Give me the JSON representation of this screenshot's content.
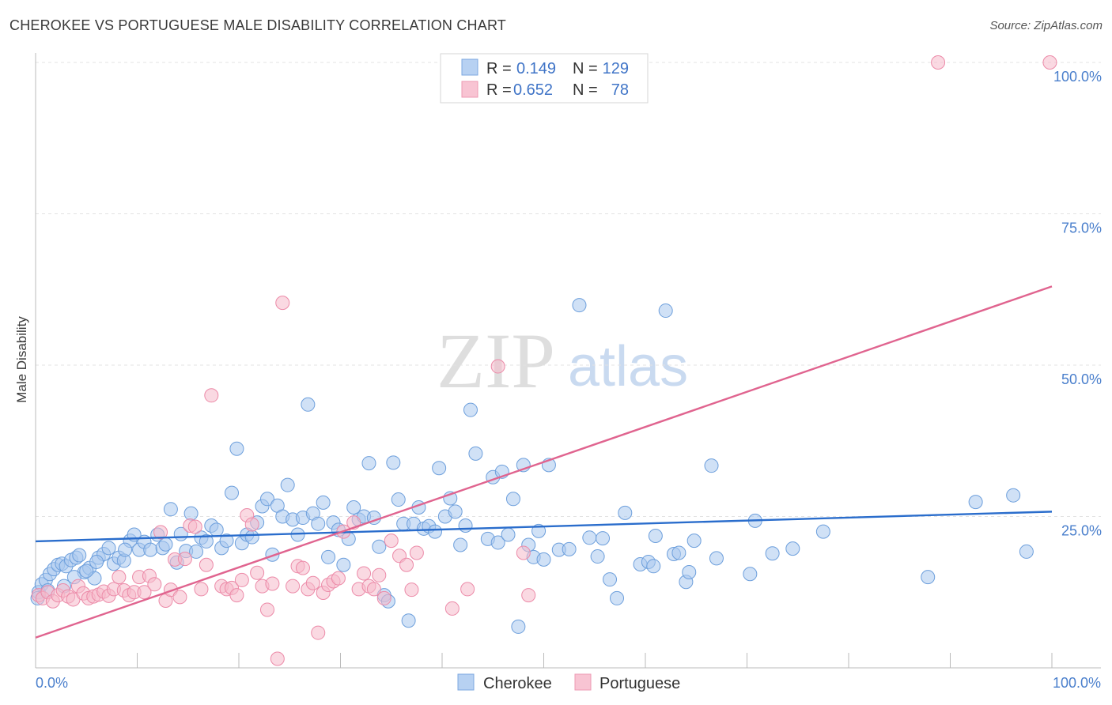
{
  "title": "CHEROKEE VS PORTUGUESE MALE DISABILITY CORRELATION CHART",
  "source": "Source: ZipAtlas.com",
  "watermark": {
    "zip": "ZIP",
    "atlas": "atlas"
  },
  "legend": {
    "rows": [
      {
        "r_label": "R =",
        "r_value": "0.149",
        "n_label": "N =",
        "n_value": "129"
      },
      {
        "r_label": "R =",
        "r_value": "0.652",
        "n_label": "N =",
        "n_value": "78"
      }
    ]
  },
  "colors": {
    "cherokee_fill": "#a9c8ef",
    "cherokee_stroke": "#6d9fdc",
    "cherokee_line": "#2a6dcc",
    "portuguese_fill": "#f6b9cb",
    "portuguese_stroke": "#ec8aa8",
    "portuguese_line": "#e0648f",
    "tick_text": "#4a7fcc"
  },
  "chart_data": {
    "type": "scatter",
    "title": "CHEROKEE VS PORTUGUESE MALE DISABILITY CORRELATION CHART",
    "xlabel": "",
    "ylabel": "Male Disability",
    "xlim": [
      0,
      100
    ],
    "ylim": [
      0,
      100
    ],
    "x_tick_labels": [
      "0.0%",
      "100.0%"
    ],
    "y_tick_labels": [
      "25.0%",
      "50.0%",
      "75.0%",
      "100.0%"
    ],
    "y_ticks": [
      25,
      50,
      75,
      100
    ],
    "grid": true,
    "legend_position": "top-center",
    "series": [
      {
        "name": "Cherokee",
        "color": "#a9c8ef",
        "r": 0.149,
        "n": 129,
        "trend": {
          "x": [
            0,
            100
          ],
          "y": [
            20.9,
            25.8
          ]
        },
        "points": [
          [
            0.3,
            12.5
          ],
          [
            0.6,
            13.8
          ],
          [
            1.0,
            14.5
          ],
          [
            1.4,
            15.5
          ],
          [
            1.8,
            16.3
          ],
          [
            2.2,
            17.0
          ],
          [
            2.6,
            17.2
          ],
          [
            3.0,
            16.8
          ],
          [
            3.5,
            17.8
          ],
          [
            4.0,
            18.2
          ],
          [
            4.3,
            18.6
          ],
          [
            4.8,
            15.8
          ],
          [
            5.3,
            16.5
          ],
          [
            5.8,
            14.8
          ],
          [
            6.2,
            18.2
          ],
          [
            6.7,
            18.8
          ],
          [
            7.2,
            19.8
          ],
          [
            7.7,
            17.2
          ],
          [
            8.2,
            18.2
          ],
          [
            8.7,
            17.7
          ],
          [
            9.3,
            21.0
          ],
          [
            9.7,
            22.0
          ],
          [
            10.2,
            19.5
          ],
          [
            10.7,
            20.8
          ],
          [
            11.3,
            19.5
          ],
          [
            12.0,
            22.0
          ],
          [
            12.5,
            19.8
          ],
          [
            12.8,
            20.4
          ],
          [
            13.3,
            26.2
          ],
          [
            13.9,
            17.4
          ],
          [
            14.3,
            22.1
          ],
          [
            14.8,
            19.3
          ],
          [
            15.3,
            25.5
          ],
          [
            15.8,
            19.2
          ],
          [
            16.3,
            21.5
          ],
          [
            16.8,
            20.9
          ],
          [
            17.3,
            23.5
          ],
          [
            17.8,
            22.8
          ],
          [
            18.3,
            19.8
          ],
          [
            18.8,
            21.0
          ],
          [
            19.3,
            28.9
          ],
          [
            19.8,
            36.2
          ],
          [
            20.3,
            20.6
          ],
          [
            20.8,
            22.0
          ],
          [
            21.3,
            21.6
          ],
          [
            21.8,
            24.0
          ],
          [
            22.3,
            26.7
          ],
          [
            22.8,
            27.9
          ],
          [
            23.3,
            18.7
          ],
          [
            23.8,
            26.8
          ],
          [
            24.3,
            25.0
          ],
          [
            24.8,
            30.2
          ],
          [
            25.3,
            24.5
          ],
          [
            25.8,
            22.0
          ],
          [
            26.3,
            24.8
          ],
          [
            26.8,
            43.5
          ],
          [
            27.3,
            25.5
          ],
          [
            27.8,
            23.8
          ],
          [
            28.3,
            27.3
          ],
          [
            28.8,
            18.3
          ],
          [
            29.3,
            24.0
          ],
          [
            29.8,
            22.8
          ],
          [
            30.3,
            17.0
          ],
          [
            30.8,
            21.3
          ],
          [
            31.3,
            26.5
          ],
          [
            31.8,
            24.5
          ],
          [
            32.3,
            25.0
          ],
          [
            32.8,
            33.8
          ],
          [
            33.3,
            24.8
          ],
          [
            33.8,
            20.0
          ],
          [
            34.3,
            12.0
          ],
          [
            34.7,
            11.0
          ],
          [
            35.2,
            33.9
          ],
          [
            35.7,
            27.8
          ],
          [
            36.2,
            23.8
          ],
          [
            36.7,
            7.8
          ],
          [
            37.2,
            23.8
          ],
          [
            37.7,
            26.5
          ],
          [
            38.2,
            23.0
          ],
          [
            38.7,
            23.4
          ],
          [
            39.3,
            22.5
          ],
          [
            39.7,
            33.0
          ],
          [
            40.3,
            25.0
          ],
          [
            40.8,
            28.0
          ],
          [
            41.3,
            25.8
          ],
          [
            41.8,
            20.3
          ],
          [
            42.3,
            23.5
          ],
          [
            42.8,
            42.6
          ],
          [
            43.3,
            35.4
          ],
          [
            44.5,
            21.3
          ],
          [
            45.0,
            31.5
          ],
          [
            45.5,
            20.7
          ],
          [
            45.9,
            32.4
          ],
          [
            46.5,
            22.0
          ],
          [
            47.0,
            27.9
          ],
          [
            47.5,
            6.8
          ],
          [
            48.0,
            33.5
          ],
          [
            48.5,
            20.3
          ],
          [
            49.0,
            18.3
          ],
          [
            49.5,
            22.6
          ],
          [
            50.0,
            17.9
          ],
          [
            50.5,
            33.5
          ],
          [
            51.5,
            19.5
          ],
          [
            52.5,
            19.6
          ],
          [
            53.5,
            59.9
          ],
          [
            54.5,
            21.5
          ],
          [
            55.3,
            18.4
          ],
          [
            55.8,
            21.4
          ],
          [
            56.5,
            14.6
          ],
          [
            57.2,
            11.5
          ],
          [
            58.0,
            25.6
          ],
          [
            59.5,
            17.1
          ],
          [
            60.3,
            17.5
          ],
          [
            60.8,
            16.8
          ],
          [
            61.0,
            21.8
          ],
          [
            62.0,
            59.0
          ],
          [
            62.8,
            18.8
          ],
          [
            63.3,
            19.0
          ],
          [
            64.0,
            14.2
          ],
          [
            64.3,
            15.8
          ],
          [
            64.8,
            21.0
          ],
          [
            66.5,
            33.4
          ],
          [
            67.0,
            18.1
          ],
          [
            70.3,
            15.5
          ],
          [
            70.8,
            24.3
          ],
          [
            72.5,
            18.9
          ],
          [
            74.5,
            19.7
          ],
          [
            77.5,
            22.5
          ],
          [
            87.8,
            15.0
          ],
          [
            92.5,
            27.4
          ],
          [
            96.2,
            28.5
          ],
          [
            97.5,
            19.2
          ],
          [
            0.2,
            11.5
          ],
          [
            1.2,
            12.8
          ],
          [
            2.8,
            13.5
          ],
          [
            3.8,
            15.0
          ],
          [
            5.0,
            16.0
          ],
          [
            6.0,
            17.5
          ],
          [
            8.8,
            19.5
          ]
        ]
      },
      {
        "name": "Portuguese",
        "color": "#f6b9cb",
        "r": 0.652,
        "n": 78,
        "trend": {
          "x": [
            0,
            100
          ],
          "y": [
            5.0,
            63.0
          ]
        },
        "points": [
          [
            0.3,
            12.0
          ],
          [
            0.7,
            11.5
          ],
          [
            1.2,
            12.5
          ],
          [
            1.7,
            11.0
          ],
          [
            2.2,
            12.0
          ],
          [
            2.7,
            12.8
          ],
          [
            3.2,
            11.8
          ],
          [
            3.7,
            11.3
          ],
          [
            4.2,
            13.5
          ],
          [
            4.7,
            12.3
          ],
          [
            5.2,
            11.5
          ],
          [
            5.7,
            11.8
          ],
          [
            6.2,
            12.1
          ],
          [
            6.7,
            12.6
          ],
          [
            7.2,
            11.9
          ],
          [
            7.7,
            13.0
          ],
          [
            8.2,
            15.0
          ],
          [
            8.7,
            12.8
          ],
          [
            9.2,
            12.0
          ],
          [
            9.7,
            12.5
          ],
          [
            10.2,
            15.0
          ],
          [
            10.7,
            12.5
          ],
          [
            11.2,
            15.2
          ],
          [
            11.7,
            13.8
          ],
          [
            12.3,
            22.4
          ],
          [
            12.8,
            11.1
          ],
          [
            13.3,
            12.9
          ],
          [
            13.7,
            17.9
          ],
          [
            14.2,
            11.7
          ],
          [
            14.7,
            18.0
          ],
          [
            15.2,
            23.5
          ],
          [
            15.7,
            23.3
          ],
          [
            16.3,
            13.0
          ],
          [
            16.8,
            17.0
          ],
          [
            17.3,
            45.0
          ],
          [
            18.3,
            13.5
          ],
          [
            18.8,
            13.0
          ],
          [
            19.3,
            13.2
          ],
          [
            19.8,
            12.0
          ],
          [
            20.3,
            14.5
          ],
          [
            20.8,
            25.2
          ],
          [
            21.3,
            23.7
          ],
          [
            21.8,
            15.7
          ],
          [
            22.3,
            13.5
          ],
          [
            22.8,
            9.6
          ],
          [
            23.3,
            13.9
          ],
          [
            23.8,
            1.5
          ],
          [
            24.3,
            60.3
          ],
          [
            25.3,
            13.5
          ],
          [
            25.8,
            16.8
          ],
          [
            26.3,
            16.5
          ],
          [
            26.8,
            13.0
          ],
          [
            27.3,
            14.0
          ],
          [
            27.8,
            5.8
          ],
          [
            28.3,
            12.4
          ],
          [
            28.8,
            13.7
          ],
          [
            29.3,
            14.3
          ],
          [
            29.8,
            14.8
          ],
          [
            30.3,
            22.5
          ],
          [
            31.3,
            24.0
          ],
          [
            31.8,
            13.0
          ],
          [
            32.3,
            15.6
          ],
          [
            32.8,
            13.5
          ],
          [
            33.3,
            13.0
          ],
          [
            33.8,
            15.3
          ],
          [
            34.3,
            11.5
          ],
          [
            35.0,
            21.0
          ],
          [
            35.8,
            18.5
          ],
          [
            36.5,
            17.0
          ],
          [
            37.0,
            12.9
          ],
          [
            37.5,
            19.0
          ],
          [
            41.0,
            9.8
          ],
          [
            42.5,
            13.0
          ],
          [
            45.5,
            49.8
          ],
          [
            48.0,
            19.0
          ],
          [
            48.5,
            12.0
          ],
          [
            88.8,
            100.0
          ],
          [
            99.8,
            100.0
          ]
        ]
      }
    ]
  },
  "bottom_legend": [
    "Cherokee",
    "Portuguese"
  ]
}
